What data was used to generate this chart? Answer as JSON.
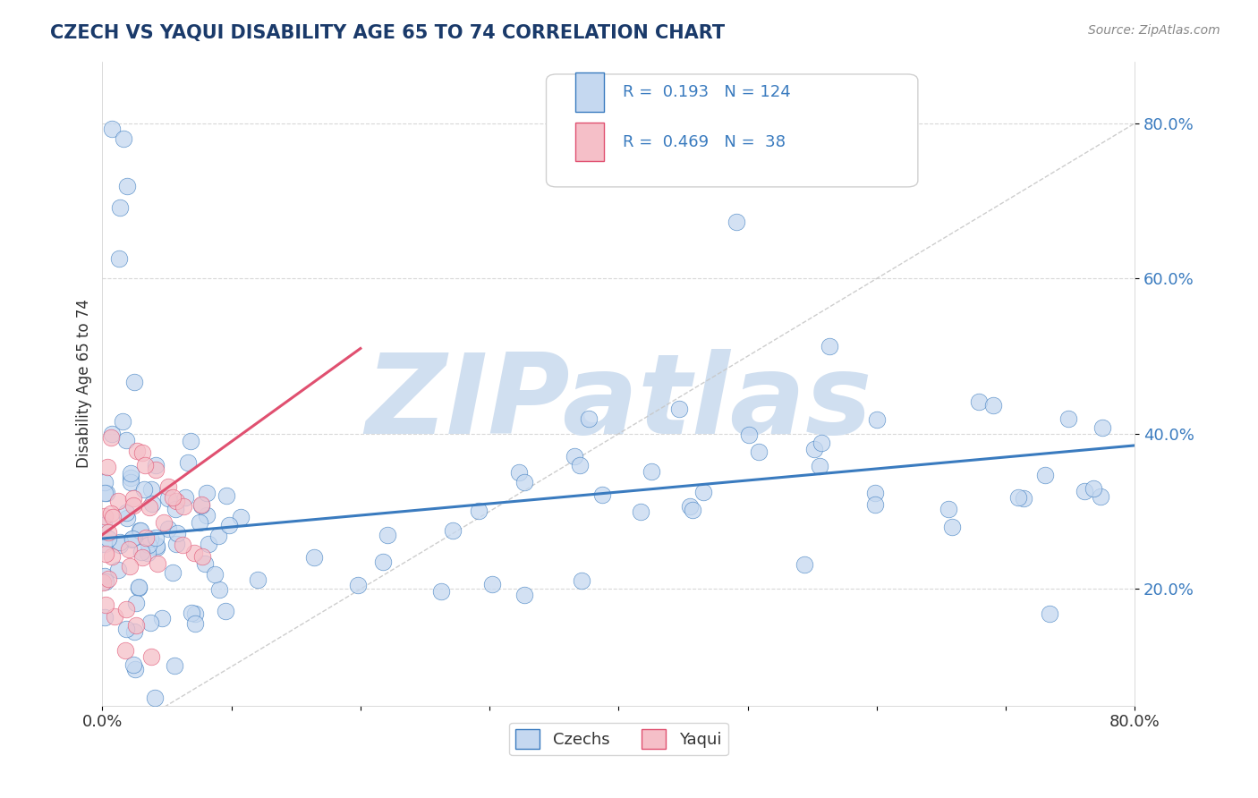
{
  "title": "CZECH VS YAQUI DISABILITY AGE 65 TO 74 CORRELATION CHART",
  "source_text": "Source: ZipAtlas.com",
  "ylabel": "Disability Age 65 to 74",
  "xlim": [
    0.0,
    0.8
  ],
  "ylim": [
    0.05,
    0.88
  ],
  "legend_R_czech": "0.193",
  "legend_N_czech": "124",
  "legend_R_yaqui": "0.469",
  "legend_N_yaqui": "38",
  "czech_color": "#c5d8f0",
  "yaqui_color": "#f5bfc8",
  "czech_line_color": "#3a7bbf",
  "yaqui_line_color": "#e05070",
  "ref_line_color": "#c8c8c8",
  "title_color": "#1a3a6a",
  "axis_label_color": "#3a7bbf",
  "watermark_color": "#d0dff0",
  "watermark_text": "ZIPatlas",
  "background_color": "#ffffff",
  "grid_color": "#d8d8d8",
  "czech_trend_x0": 0.0,
  "czech_trend_y0": 0.265,
  "czech_trend_x1": 0.8,
  "czech_trend_y1": 0.385,
  "yaqui_trend_x0": 0.0,
  "yaqui_trend_y0": 0.27,
  "yaqui_trend_x1": 0.2,
  "yaqui_trend_y1": 0.51
}
